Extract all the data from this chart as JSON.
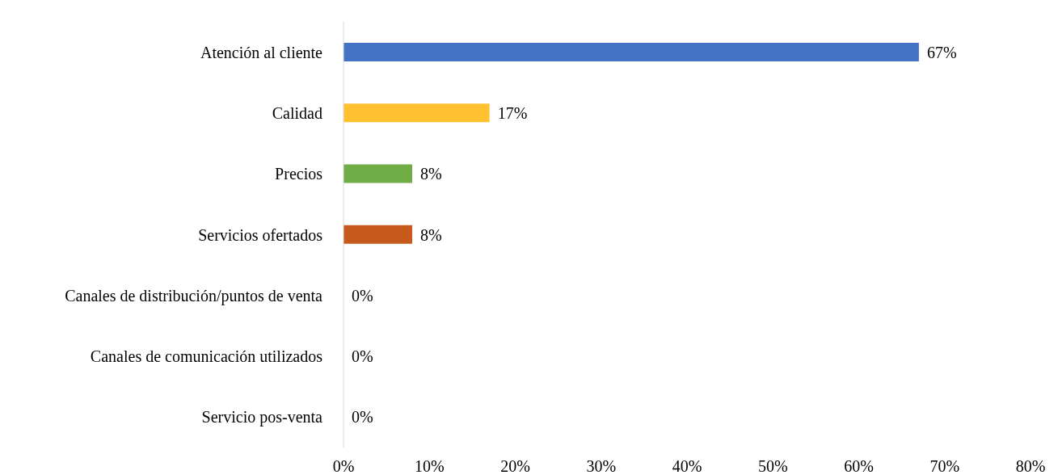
{
  "chart_data": {
    "type": "bar",
    "orientation": "horizontal",
    "categories": [
      "Atención al cliente",
      "Calidad",
      "Precios",
      "Servicios ofertados",
      "Canales de distribución/puntos de venta",
      "Canales de comunicación utilizados",
      "Servicio pos-venta"
    ],
    "values": [
      67,
      17,
      8,
      8,
      0,
      0,
      0
    ],
    "colors": [
      "#4472c4",
      "#ffc12f",
      "#70ad47",
      "#c55a1c",
      "#4472c4",
      "#4472c4",
      "#4472c4"
    ],
    "value_labels": [
      "67%",
      "17%",
      "8%",
      "8%",
      "0%",
      "0%",
      "0%"
    ],
    "xlim": [
      0,
      80
    ],
    "xticks": [
      {
        "value": 0,
        "label": "0%"
      },
      {
        "value": 10,
        "label": "10%"
      },
      {
        "value": 20,
        "label": "20%"
      },
      {
        "value": 30,
        "label": "30%"
      },
      {
        "value": 40,
        "label": "40%"
      },
      {
        "value": 50,
        "label": "50%"
      },
      {
        "value": 60,
        "label": "60%"
      },
      {
        "value": 70,
        "label": "70%"
      },
      {
        "value": 80,
        "label": "80%"
      }
    ],
    "grid": false,
    "legend": false
  }
}
